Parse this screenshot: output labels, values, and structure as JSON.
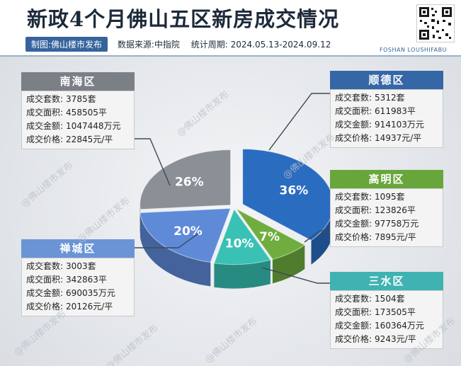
{
  "header": {
    "producer": "制图:佛山楼市发布",
    "source": "数据来源:中指院",
    "period": "统计周期: 2024.05.13-2024.09.12",
    "brand": "FOSHAN LOUSHIFABU"
  },
  "labels": {
    "count": "成交套数:",
    "area": "成交面积:",
    "amount": "成交金额:",
    "price": "成交价格:"
  },
  "watermark": "@佛山楼市发布",
  "chart_data": {
    "type": "pie",
    "title": "新政4个月佛山五区新房成交情况",
    "slices": [
      {
        "name": "顺德区",
        "value": 36,
        "label": "36%",
        "color": "#2a6cc0"
      },
      {
        "name": "高明区",
        "value": 7,
        "label": "7%",
        "color": "#6fae3e"
      },
      {
        "name": "三水区",
        "value": 10,
        "label": "10%",
        "color": "#38c1b4"
      },
      {
        "name": "禅城区",
        "value": 20,
        "label": "20%",
        "color": "#5f8ad8"
      },
      {
        "name": "南海区",
        "value": 26,
        "label": "26%",
        "color": "#8b8f96"
      }
    ],
    "districts": [
      {
        "name": "南海区",
        "count": "3785套",
        "area": "458505平",
        "amount": "1047448万元",
        "price": "22845元/平"
      },
      {
        "name": "顺德区",
        "count": "5312套",
        "area": "611983平",
        "amount": "914103万元",
        "price": "14937元/平"
      },
      {
        "name": "高明区",
        "count": "1095套",
        "area": "123826平",
        "amount": "97758万元",
        "price": "7895元/平"
      },
      {
        "name": "禅城区",
        "count": "3003套",
        "area": "342863平",
        "amount": "690035万元",
        "price": "20126元/平"
      },
      {
        "name": "三水区",
        "count": "1504套",
        "area": "173505平",
        "amount": "160364万元",
        "price": "9243元/平"
      }
    ]
  }
}
